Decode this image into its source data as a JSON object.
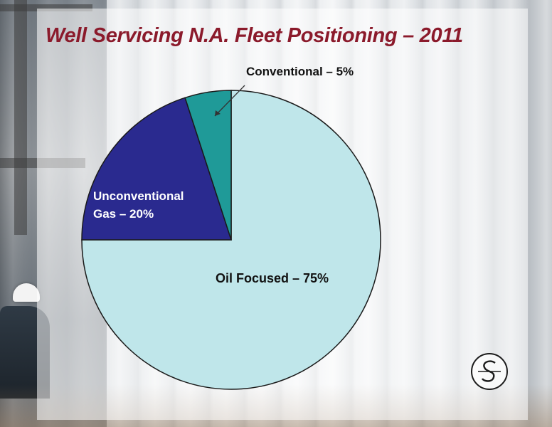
{
  "slide": {
    "title": "Well Servicing N.A. Fleet Positioning – 2011"
  },
  "chart_data": {
    "type": "pie",
    "title": "Well Servicing N.A. Fleet Positioning – 2011",
    "slices": [
      {
        "label": "Oil Focused – 75%",
        "value": 75,
        "color": "#bfe6ea"
      },
      {
        "label": "Unconventional Gas – 20%",
        "value": 20,
        "color": "#2a2a8f"
      },
      {
        "label": "Conventional – 5%",
        "value": 5,
        "color": "#1f9a98"
      }
    ],
    "start": "12 o'clock, clockwise",
    "legend": "none (direct labels)"
  },
  "logo": {
    "icon": "company-s-logo-icon"
  }
}
